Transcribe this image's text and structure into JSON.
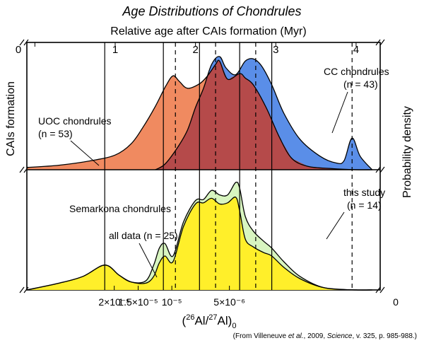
{
  "chart_data": {
    "type": "area",
    "title": "Age Distributions of Chondrules",
    "top_axis": {
      "label": "Relative age after CAIs formation (Myr)",
      "ticks": [
        {
          "label": "0",
          "value": 0
        },
        {
          "label": "1",
          "value": 1
        },
        {
          "label": "2",
          "value": 2
        },
        {
          "label": "3",
          "value": 3
        },
        {
          "label": "4",
          "value": 4
        }
      ]
    },
    "bottom_axis": {
      "label_main": "(",
      "label_sup": "26",
      "label_mid": "Al/",
      "label_sup2": "27",
      "label_mid2": "Al)",
      "label_sub": "0",
      "ticks": [
        {
          "label": "2×10⁻⁵",
          "value": 2e-05
        },
        {
          "label": "1.5×10⁻⁵",
          "value": 1.5e-05
        },
        {
          "label": "10⁻⁵",
          "value": 1e-05
        },
        {
          "label": "5×10⁻⁶",
          "value": 5e-06
        },
        {
          "label": "0",
          "value": 0
        }
      ]
    },
    "left_label": "CAIs formation",
    "right_label": "Probability density",
    "vertical_lines": {
      "solid_myr": [
        0.87,
        1.6,
        2.05,
        2.55,
        2.95
      ],
      "dashed_myr": [
        1.75,
        2.25,
        2.75,
        3.95
      ]
    },
    "panels": [
      {
        "name": "top",
        "series": [
          {
            "name": "UOC chondrules",
            "count_label": "(n = 53)",
            "color": "#f08a60",
            "points": [
              [
                -0.1,
                0.02
              ],
              [
                0.3,
                0.04
              ],
              [
                0.7,
                0.08
              ],
              [
                1.0,
                0.13
              ],
              [
                1.2,
                0.23
              ],
              [
                1.35,
                0.38
              ],
              [
                1.5,
                0.56
              ],
              [
                1.63,
                0.74
              ],
              [
                1.72,
                0.83
              ],
              [
                1.8,
                0.78
              ],
              [
                1.9,
                0.72
              ],
              [
                2.05,
                0.76
              ],
              [
                2.15,
                0.83
              ],
              [
                2.25,
                0.93
              ],
              [
                2.3,
                0.96
              ],
              [
                2.4,
                0.8
              ],
              [
                2.55,
                0.85
              ],
              [
                2.62,
                0.81
              ],
              [
                2.72,
                0.75
              ],
              [
                2.88,
                0.55
              ],
              [
                3.05,
                0.28
              ],
              [
                3.2,
                0.1
              ],
              [
                3.4,
                0.03
              ],
              [
                3.7,
                0.01
              ],
              [
                4.0,
                0.0
              ],
              [
                4.2,
                0.0
              ]
            ]
          },
          {
            "name": "CC chondrules",
            "count_label": "(n = 43)",
            "color": "#5a8ee8",
            "points": [
              [
                1.5,
                0.0
              ],
              [
                1.62,
                0.05
              ],
              [
                1.78,
                0.2
              ],
              [
                1.9,
                0.35
              ],
              [
                2.0,
                0.55
              ],
              [
                2.1,
                0.72
              ],
              [
                2.2,
                0.93
              ],
              [
                2.3,
                1.0
              ],
              [
                2.38,
                0.9
              ],
              [
                2.5,
                0.84
              ],
              [
                2.62,
                0.96
              ],
              [
                2.72,
                0.98
              ],
              [
                2.82,
                0.92
              ],
              [
                2.95,
                0.75
              ],
              [
                3.1,
                0.5
              ],
              [
                3.3,
                0.27
              ],
              [
                3.55,
                0.12
              ],
              [
                3.75,
                0.06
              ],
              [
                3.85,
                0.08
              ],
              [
                3.95,
                0.28
              ],
              [
                4.05,
                0.12
              ],
              [
                4.2,
                0.0
              ]
            ]
          }
        ]
      },
      {
        "name": "bottom",
        "title": "Semarkona chondrules",
        "series": [
          {
            "name": "all data",
            "count_label": "(n = 25)",
            "color": "#d8f5c0",
            "points": [
              [
                -0.1,
                0.0
              ],
              [
                0.3,
                0.06
              ],
              [
                0.6,
                0.12
              ],
              [
                0.87,
                0.22
              ],
              [
                1.05,
                0.13
              ],
              [
                1.2,
                0.07
              ],
              [
                1.38,
                0.08
              ],
              [
                1.48,
                0.22
              ],
              [
                1.55,
                0.37
              ],
              [
                1.62,
                0.41
              ],
              [
                1.72,
                0.3
              ],
              [
                1.85,
                0.6
              ],
              [
                2.0,
                0.79
              ],
              [
                2.1,
                0.8
              ],
              [
                2.2,
                0.88
              ],
              [
                2.3,
                0.84
              ],
              [
                2.4,
                0.84
              ],
              [
                2.5,
                0.95
              ],
              [
                2.55,
                0.9
              ],
              [
                2.62,
                0.65
              ],
              [
                2.72,
                0.52
              ],
              [
                2.85,
                0.43
              ],
              [
                2.95,
                0.37
              ],
              [
                3.1,
                0.25
              ],
              [
                3.3,
                0.12
              ],
              [
                3.6,
                0.02
              ],
              [
                4.0,
                0.0
              ],
              [
                4.2,
                0.0
              ]
            ]
          },
          {
            "name": "this study",
            "count_label": "(n = 14)",
            "color": "#ffef2a",
            "points": [
              [
                -0.1,
                0.0
              ],
              [
                0.3,
                0.06
              ],
              [
                0.6,
                0.12
              ],
              [
                0.87,
                0.22
              ],
              [
                1.05,
                0.13
              ],
              [
                1.2,
                0.07
              ],
              [
                1.38,
                0.06
              ],
              [
                1.48,
                0.12
              ],
              [
                1.55,
                0.24
              ],
              [
                1.62,
                0.3
              ],
              [
                1.72,
                0.25
              ],
              [
                1.85,
                0.56
              ],
              [
                2.0,
                0.76
              ],
              [
                2.1,
                0.77
              ],
              [
                2.2,
                0.81
              ],
              [
                2.3,
                0.76
              ],
              [
                2.4,
                0.77
              ],
              [
                2.5,
                0.82
              ],
              [
                2.55,
                0.7
              ],
              [
                2.62,
                0.45
              ],
              [
                2.72,
                0.38
              ],
              [
                2.85,
                0.33
              ],
              [
                2.95,
                0.3
              ],
              [
                3.1,
                0.2
              ],
              [
                3.3,
                0.1
              ],
              [
                3.6,
                0.02
              ],
              [
                4.0,
                0.0
              ],
              [
                4.2,
                0.0
              ]
            ]
          }
        ]
      }
    ],
    "source_note": {
      "prefix": "(From Villeneuve ",
      "etal": "et al.",
      "middle": ", 2009, ",
      "journal": "Science",
      "suffix": ", v. 325, p. 985-988.)"
    }
  }
}
